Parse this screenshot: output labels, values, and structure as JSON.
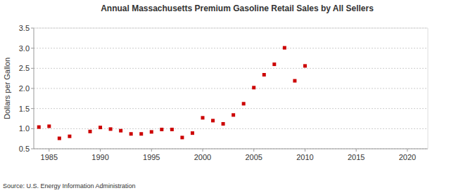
{
  "chart_data": {
    "type": "scatter",
    "title": "Annual Massachusetts Premium Gasoline Retail Sales by All Sellers",
    "y_label": "Dollars per Gallon",
    "source": "Source: U.S. Energy Information Administration",
    "x": [
      1984,
      1985,
      1986,
      1987,
      1989,
      1990,
      1991,
      1992,
      1993,
      1994,
      1995,
      1996,
      1997,
      1998,
      1999,
      2000,
      2001,
      2002,
      2003,
      2004,
      2005,
      2006,
      2007,
      2008,
      2009,
      2010
    ],
    "values": [
      1.04,
      1.06,
      0.76,
      0.81,
      0.93,
      1.03,
      0.99,
      0.95,
      0.87,
      0.87,
      0.92,
      0.98,
      0.98,
      0.78,
      0.89,
      1.27,
      1.2,
      1.12,
      1.34,
      1.62,
      2.02,
      2.34,
      2.6,
      3.01,
      2.19,
      2.56
    ],
    "color": "#cc0000",
    "marker": "square",
    "xlim": [
      1983.5,
      2022
    ],
    "xticks": [
      1985,
      1990,
      1995,
      2000,
      2005,
      2010,
      2015,
      2020
    ],
    "ylim": [
      0.5,
      3.5
    ],
    "yticks": [
      0.5,
      {
        "value": 1,
        "label": "1.0"
      },
      1.5,
      {
        "value": 2,
        "label": "2.0"
      },
      2.5,
      {
        "value": 3,
        "label": "3.0"
      },
      3.5
    ],
    "grid": true
  }
}
